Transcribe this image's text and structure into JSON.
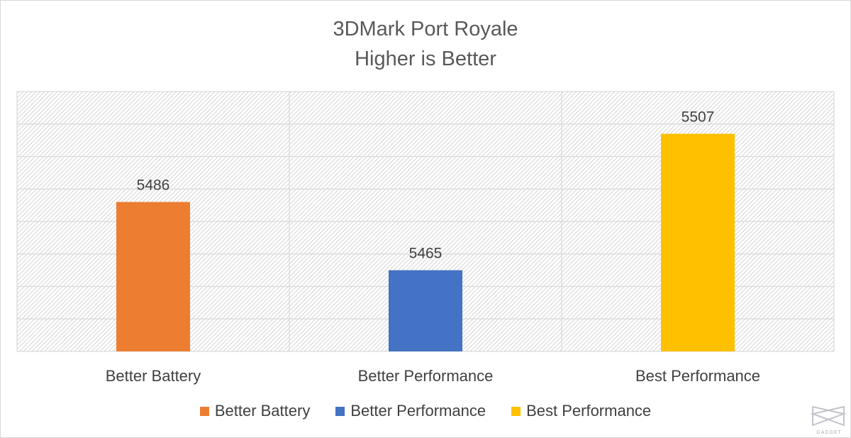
{
  "chart_data": {
    "type": "bar",
    "title": "3DMark Port Royale",
    "subtitle": "Higher is Better",
    "categories": [
      "Better Battery",
      "Better Performance",
      "Best Performance"
    ],
    "values": [
      5486,
      5465,
      5507
    ],
    "colors": [
      "#ED7D31",
      "#4472C4",
      "#FFC000"
    ],
    "ylim": [
      5440,
      5520
    ],
    "ytick_step": 10,
    "ytick_labels_visible": false,
    "grid": true,
    "plot_background": "diagonal-hatch",
    "legend": {
      "position": "bottom",
      "entries": [
        "Better Battery",
        "Better Performance",
        "Best Performance"
      ]
    }
  },
  "watermark": {
    "text": "GADGET",
    "icon": "gadget-logo-icon"
  }
}
